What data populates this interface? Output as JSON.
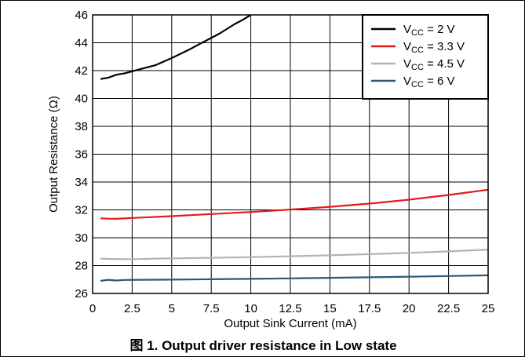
{
  "caption": "图 1. Output driver resistance in Low state",
  "chart_data": {
    "type": "line",
    "xlabel": "Output Sink Current (mA)",
    "ylabel": "Output Resistance (Ω)",
    "xlim": [
      0,
      25
    ],
    "ylim": [
      26,
      46
    ],
    "xticks": [
      0,
      2.5,
      5,
      7.5,
      10,
      12.5,
      15,
      17.5,
      20,
      22.5,
      25
    ],
    "xtick_labels": [
      "0",
      "2.5",
      "5",
      "7.5",
      "10",
      "12.5",
      "15",
      "17.5",
      "20",
      "22.5",
      "25"
    ],
    "yticks": [
      26,
      28,
      30,
      32,
      34,
      36,
      38,
      40,
      42,
      44,
      46
    ],
    "ytick_labels": [
      "26",
      "28",
      "30",
      "32",
      "34",
      "36",
      "38",
      "40",
      "42",
      "44",
      "46"
    ],
    "grid": true,
    "legend_position": "top-right",
    "series": [
      {
        "name": "V_CC = 2 V",
        "label_main": "V",
        "label_sub": "CC",
        "label_rest": " = 2 V",
        "color": "#000000",
        "x": [
          0.5,
          1.0,
          1.5,
          2.0,
          2.5,
          3.0,
          3.5,
          4.0,
          5.0,
          6.0,
          7.0,
          8.0,
          9.0,
          9.5,
          10.0
        ],
        "y": [
          41.4,
          41.5,
          41.7,
          41.8,
          41.95,
          42.1,
          42.25,
          42.4,
          42.9,
          43.45,
          44.05,
          44.65,
          45.35,
          45.65,
          46.0
        ]
      },
      {
        "name": "V_CC = 3.3 V",
        "label_main": "V",
        "label_sub": "CC",
        "label_rest": " = 3.3 V",
        "color": "#e31a1c",
        "x": [
          0.5,
          1.0,
          1.5,
          2.5,
          5,
          7.5,
          10,
          12.5,
          15,
          17.5,
          20,
          22.5,
          25
        ],
        "y": [
          31.4,
          31.37,
          31.36,
          31.42,
          31.55,
          31.7,
          31.85,
          32.02,
          32.22,
          32.45,
          32.73,
          33.07,
          33.45
        ]
      },
      {
        "name": "V_CC = 4.5 V",
        "label_main": "V",
        "label_sub": "CC",
        "label_rest": " = 4.5 V",
        "color": "#b3b3b3",
        "x": [
          0.5,
          1.0,
          2.0,
          3.0,
          4.0,
          5.0,
          7.5,
          10,
          12.5,
          15,
          17.5,
          20,
          22.5,
          25
        ],
        "y": [
          28.5,
          28.48,
          28.46,
          28.47,
          28.5,
          28.52,
          28.56,
          28.61,
          28.67,
          28.74,
          28.82,
          28.91,
          29.02,
          29.15
        ]
      },
      {
        "name": "V_CC = 6 V",
        "label_main": "V",
        "label_sub": "CC",
        "label_rest": " = 6 V",
        "color": "#2b5874",
        "x": [
          0.5,
          1.0,
          1.5,
          2.0,
          3.0,
          5.0,
          7.5,
          10,
          12.5,
          15,
          17.5,
          20,
          22.5,
          25
        ],
        "y": [
          26.9,
          26.98,
          26.93,
          26.97,
          26.98,
          26.99,
          27.02,
          27.05,
          27.08,
          27.12,
          27.16,
          27.2,
          27.25,
          27.3
        ]
      }
    ]
  }
}
